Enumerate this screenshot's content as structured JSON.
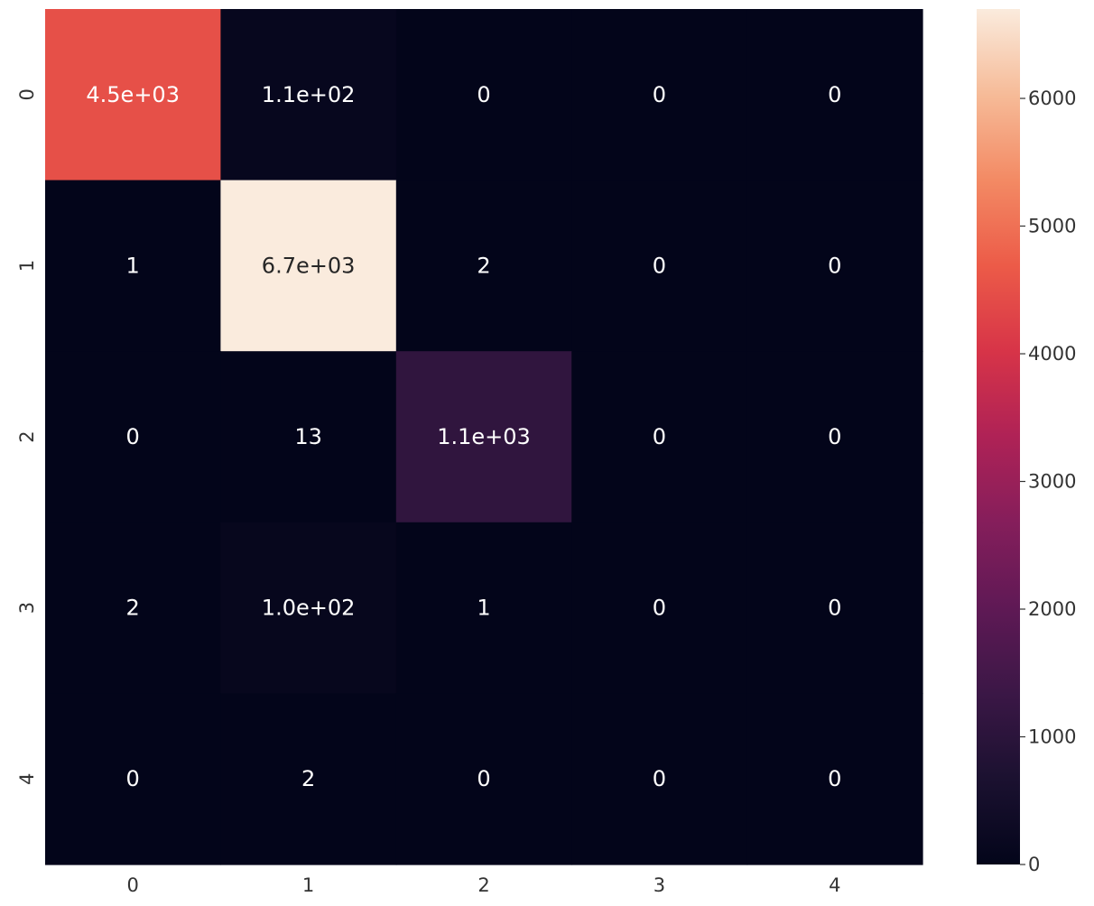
{
  "chart_data": {
    "type": "heatmap",
    "title": "",
    "xlabel": "",
    "ylabel": "",
    "x_categories": [
      "0",
      "1",
      "2",
      "3",
      "4"
    ],
    "y_categories": [
      "0",
      "1",
      "2",
      "3",
      "4"
    ],
    "values": [
      [
        4500,
        110,
        0,
        0,
        0
      ],
      [
        1,
        6700,
        2,
        0,
        0
      ],
      [
        0,
        13,
        1100,
        0,
        0
      ],
      [
        2,
        100,
        1,
        0,
        0
      ],
      [
        0,
        2,
        0,
        0,
        0
      ]
    ],
    "annotations": [
      [
        "4.5e+03",
        "1.1e+02",
        "0",
        "0",
        "0"
      ],
      [
        "1",
        "6.7e+03",
        "2",
        "0",
        "0"
      ],
      [
        "0",
        "13",
        "1.1e+03",
        "0",
        "0"
      ],
      [
        "2",
        "1.0e+02",
        "1",
        "0",
        "0"
      ],
      [
        "0",
        "2",
        "0",
        "0",
        "0"
      ]
    ],
    "colormap": "rocket",
    "colorbar": {
      "min": 0,
      "max": 6700,
      "ticks": [
        0,
        1000,
        2000,
        3000,
        4000,
        5000,
        6000
      ],
      "tick_labels": [
        "0",
        "1000",
        "2000",
        "3000",
        "4000",
        "5000",
        "6000"
      ]
    },
    "grid": false,
    "legend": "colorbar-right"
  }
}
